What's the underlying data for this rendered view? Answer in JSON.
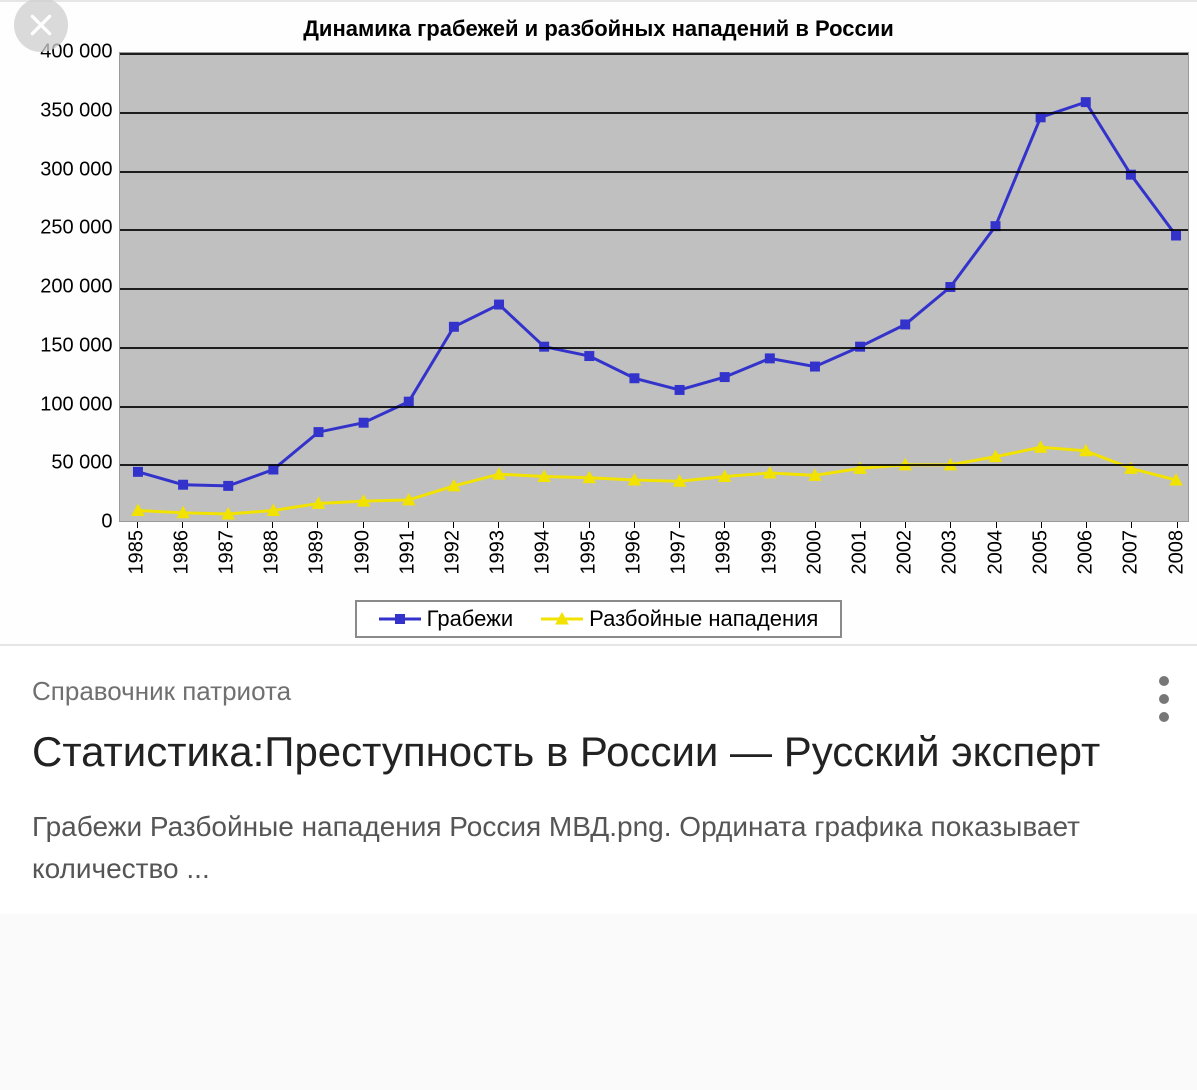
{
  "chart": {
    "type": "line",
    "title": "Динамика грабежей и разбойных нападений в России",
    "title_fontsize": 22,
    "title_fontweight": "bold",
    "plot_background": "#c0c0c0",
    "grid_color": "#000000",
    "axis_font_color": "#000000",
    "axis_fontsize": 20,
    "ylim": [
      0,
      400000
    ],
    "ytick_step": 50000,
    "y_ticks": [
      0,
      50000,
      100000,
      150000,
      200000,
      250000,
      300000,
      350000,
      400000
    ],
    "y_tick_labels": [
      "0",
      "50 000",
      "100 000",
      "150 000",
      "200 000",
      "250 000",
      "300 000",
      "350 000",
      "400 000"
    ],
    "x_categories": [
      "1985",
      "1986",
      "1987",
      "1988",
      "1989",
      "1990",
      "1991",
      "1992",
      "1993",
      "1994",
      "1995",
      "1996",
      "1997",
      "1998",
      "1999",
      "2000",
      "2001",
      "2002",
      "2003",
      "2004",
      "2005",
      "2006",
      "2007",
      "2008"
    ],
    "series": [
      {
        "name": "Грабежи",
        "color": "#3333cc",
        "line_width": 3,
        "marker": "square",
        "marker_size": 9,
        "values": [
          42000,
          31000,
          30000,
          44000,
          76000,
          84000,
          102000,
          166000,
          185000,
          149000,
          141000,
          122000,
          112000,
          123000,
          139000,
          132000,
          149000,
          168000,
          200000,
          252000,
          345000,
          358000,
          296000,
          244000
        ]
      },
      {
        "name": "Разбойные нападения",
        "color": "#f2e200",
        "line_width": 3,
        "marker": "triangle",
        "marker_size": 10,
        "values": [
          9000,
          7000,
          6000,
          9000,
          15000,
          17000,
          18000,
          30000,
          40000,
          38000,
          37000,
          35000,
          34000,
          38000,
          41000,
          39000,
          45000,
          48000,
          48000,
          55000,
          63000,
          60000,
          45000,
          35000
        ]
      }
    ],
    "legend": {
      "border_color": "#8a8a8a",
      "background": "#ffffff",
      "fontsize": 22
    }
  },
  "close_icon_color": "#ffffff",
  "result": {
    "source": "Справочник патриота",
    "title": "Статистика:Преступность в России — Русский эксперт",
    "snippet": "Грабежи Разбойные нападения Россия МВД.png. Ордината графика показывает количество ...",
    "source_color": "#707070",
    "title_color": "#222222",
    "snippet_color": "#555555",
    "overflow_dot_color": "#777777"
  }
}
